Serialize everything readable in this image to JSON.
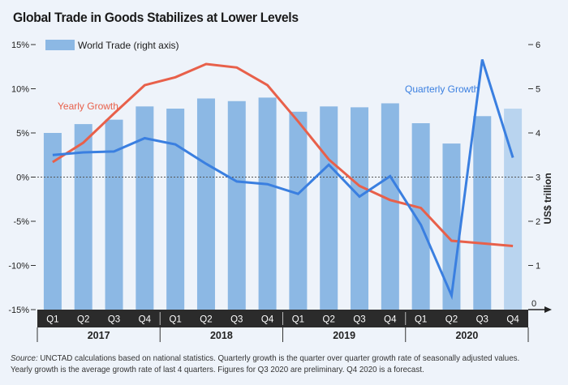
{
  "chart_data": {
    "type": "bar+line",
    "title": "Global Trade in Goods Stabilizes at Lower Levels",
    "categories": [
      "Q1",
      "Q2",
      "Q3",
      "Q4",
      "Q1",
      "Q2",
      "Q3",
      "Q4",
      "Q1",
      "Q2",
      "Q3",
      "Q4",
      "Q1",
      "Q2",
      "Q3",
      "Q4"
    ],
    "years": [
      "2017",
      "2018",
      "2019",
      "2020"
    ],
    "series": [
      {
        "name": "World Trade (right axis)",
        "type": "bar",
        "axis": "right",
        "color": "#8cb8e4",
        "forecast_color": "#b9d4ef",
        "values": [
          4.0,
          4.2,
          4.3,
          4.6,
          4.55,
          4.78,
          4.72,
          4.8,
          4.48,
          4.6,
          4.58,
          4.67,
          4.22,
          3.76,
          4.38,
          4.55
        ]
      },
      {
        "name": "Yearly Growth",
        "type": "line",
        "axis": "left",
        "color": "#e8604a",
        "values": [
          1.7,
          3.9,
          7.2,
          10.4,
          11.3,
          12.8,
          12.4,
          10.4,
          6.3,
          2.0,
          -1.0,
          -2.6,
          -3.5,
          -7.2,
          -7.5,
          -7.8
        ]
      },
      {
        "name": "Quarterly Growth",
        "type": "line",
        "axis": "left",
        "color": "#3a7fe0",
        "values": [
          2.5,
          2.8,
          2.9,
          4.4,
          3.7,
          1.5,
          -0.5,
          -0.8,
          -1.9,
          1.4,
          -2.2,
          0.1,
          -5.4,
          -13.4,
          13.3,
          2.2
        ]
      }
    ],
    "left_axis": {
      "ticks": [
        "15%",
        "10%",
        "5%",
        "0%",
        "-5%",
        "-10%",
        "-15%"
      ],
      "range": [
        -15,
        15
      ]
    },
    "right_axis": {
      "ticks": [
        "6",
        "5",
        "4",
        "3",
        "2",
        "1",
        "0"
      ],
      "range": [
        0,
        6
      ],
      "label": "US$ trillion"
    },
    "annotations": {
      "yearly": "Yearly Growth",
      "quarterly": "Quarterly Growth"
    },
    "legend": {
      "label": "World Trade (right axis)",
      "position": "top-left"
    },
    "zero_line": "dotted"
  },
  "source": {
    "label": "Source:",
    "text": " UNCTAD calculations based on national statistics. Quarterly growth is the quarter over quarter growth rate of seasonally adjusted values. Yearly growth is the average growth rate of last 4 quarters. Figures for Q3 2020 are preliminary. Q4 2020 is a forecast."
  }
}
